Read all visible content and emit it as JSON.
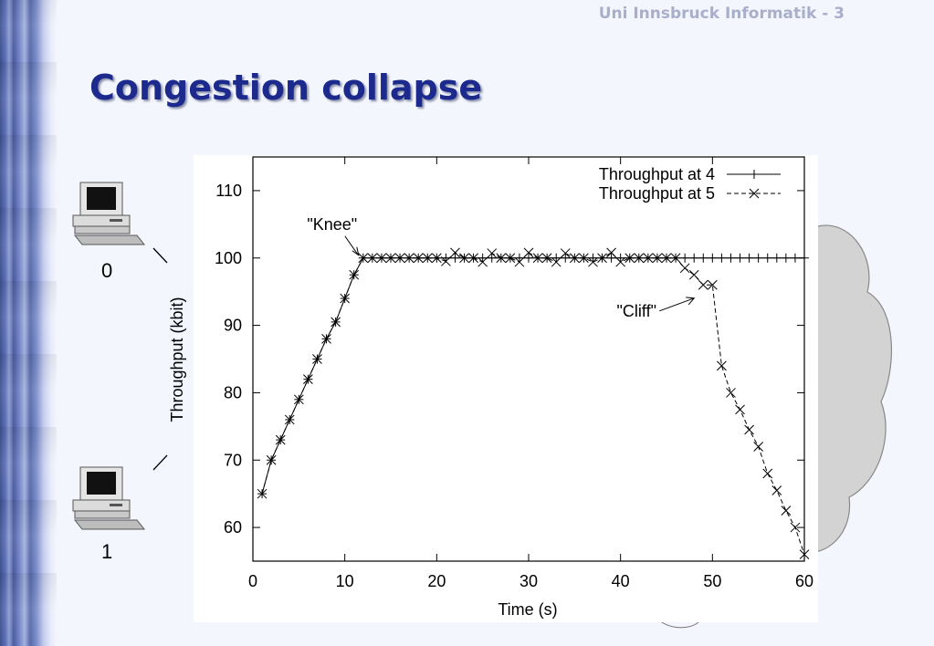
{
  "header": {
    "text": "Uni Innsbruck Informatik - 3"
  },
  "slide": {
    "title": "Congestion collapse"
  },
  "hosts": [
    {
      "label": "0"
    },
    {
      "label": "1"
    }
  ],
  "chart_data": {
    "type": "line",
    "xlabel": "Time (s)",
    "ylabel": "Throughput (kbit)",
    "xlim": [
      0,
      60
    ],
    "ylim": [
      55,
      115
    ],
    "x_ticks": [
      0,
      10,
      20,
      30,
      40,
      50,
      60
    ],
    "y_ticks": [
      60,
      70,
      80,
      90,
      100,
      110
    ],
    "legend_position": "top-right",
    "series": [
      {
        "name": "Throughput at 4",
        "style": "solid-plus",
        "x": [
          1,
          2,
          3,
          4,
          5,
          6,
          7,
          8,
          9,
          10,
          11,
          12,
          13,
          14,
          15,
          16,
          17,
          18,
          19,
          20,
          21,
          22,
          23,
          24,
          25,
          26,
          27,
          28,
          29,
          30,
          31,
          32,
          33,
          34,
          35,
          36,
          37,
          38,
          39,
          40,
          41,
          42,
          43,
          44,
          45,
          46,
          47,
          48,
          49,
          50,
          51,
          52,
          53,
          54,
          55,
          56,
          57,
          58,
          59,
          60
        ],
        "values": [
          65,
          70,
          73,
          76,
          79,
          82,
          85,
          88,
          90.5,
          94,
          97.5,
          100,
          100,
          100,
          100,
          100,
          100,
          100,
          100,
          100,
          100,
          100,
          100,
          100,
          100,
          100,
          100,
          100,
          100,
          100,
          100,
          100,
          100,
          100,
          100,
          100,
          100,
          100,
          100,
          100,
          100,
          100,
          100,
          100,
          100,
          100,
          100,
          100,
          100,
          100,
          100,
          100,
          100,
          100,
          100,
          100,
          100,
          100,
          100,
          100
        ]
      },
      {
        "name": "Throughput at 5",
        "style": "dashed-x",
        "x": [
          1,
          2,
          3,
          4,
          5,
          6,
          7,
          8,
          9,
          10,
          11,
          12,
          13,
          14,
          15,
          16,
          17,
          18,
          19,
          20,
          21,
          22,
          23,
          24,
          25,
          26,
          27,
          28,
          29,
          30,
          31,
          32,
          33,
          34,
          35,
          36,
          37,
          38,
          39,
          40,
          41,
          42,
          43,
          44,
          45,
          46,
          47,
          48,
          49,
          50,
          51,
          52,
          53,
          54,
          55,
          56,
          57,
          58,
          59,
          60
        ],
        "values": [
          65,
          70,
          73,
          76,
          79,
          82,
          85,
          88,
          90.5,
          94,
          97.5,
          100,
          100,
          100,
          100,
          100,
          100,
          100,
          100,
          100,
          99.5,
          100.8,
          100,
          100,
          99.4,
          100.7,
          100,
          100,
          99.4,
          100.8,
          100,
          100,
          99.4,
          100.7,
          100,
          100,
          99.4,
          100,
          100.8,
          99.4,
          100,
          100,
          100,
          100,
          100,
          100,
          98.5,
          97.5,
          96,
          96,
          84,
          80,
          77.5,
          74.5,
          72,
          68,
          65.5,
          62.5,
          60,
          56
        ]
      }
    ],
    "annotations": [
      {
        "text": "\"Knee\"",
        "x": 12,
        "y": 100
      },
      {
        "text": "\"Cliff\"",
        "x": 49,
        "y": 92
      }
    ]
  }
}
